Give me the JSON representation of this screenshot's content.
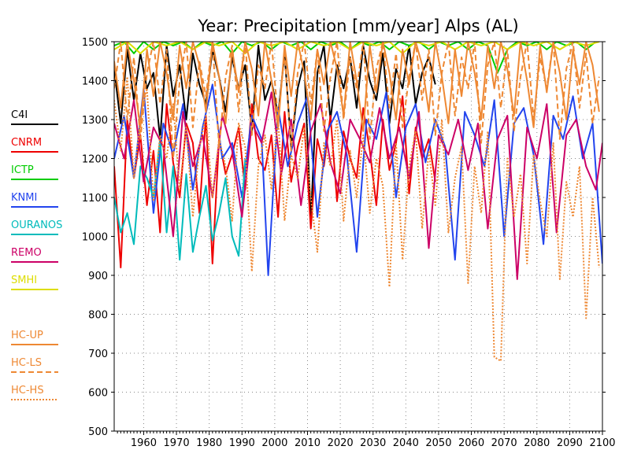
{
  "chart_data": {
    "type": "line",
    "title": "Year: Precipitation [mm/year] Alps (AL)",
    "xlabel": "",
    "ylabel": "",
    "xlim": [
      1951,
      2100
    ],
    "ylim": [
      500,
      1500
    ],
    "x_ticks": [
      1960,
      1970,
      1980,
      1990,
      2000,
      2010,
      2020,
      2030,
      2040,
      2050,
      2060,
      2070,
      2080,
      2090,
      2100
    ],
    "y_ticks": [
      500,
      600,
      700,
      800,
      900,
      1000,
      1100,
      1200,
      1300,
      1400,
      1500
    ],
    "grid": true,
    "legend_position": "left",
    "series": [
      {
        "name": "C4I",
        "color": "#000000",
        "dash": "solid",
        "x": [
          1951,
          1953,
          1955,
          1957,
          1959,
          1961,
          1963,
          1965,
          1967,
          1969,
          1971,
          1973,
          1975,
          1977,
          1979,
          1981,
          1983,
          1985,
          1987,
          1989,
          1991,
          1993,
          1995,
          1997,
          1999,
          2001,
          2003,
          2005,
          2007,
          2009,
          2011,
          2013,
          2015,
          2017,
          2019,
          2021,
          2023,
          2025,
          2027,
          2029,
          2031,
          2033,
          2035,
          2037,
          2039,
          2041,
          2043,
          2045,
          2047,
          2049
        ],
        "y": [
          1430,
          1290,
          1480,
          1350,
          1470,
          1380,
          1420,
          1250,
          1490,
          1360,
          1440,
          1300,
          1470,
          1390,
          1340,
          1480,
          1410,
          1320,
          1460,
          1380,
          1440,
          1270,
          1490,
          1350,
          1400,
          1310,
          1470,
          1230,
          1380,
          1450,
          1040,
          1420,
          1490,
          1300,
          1440,
          1380,
          1460,
          1330,
          1490,
          1400,
          1350,
          1470,
          1290,
          1430,
          1380,
          1490,
          1340,
          1420,
          1460,
          1390
        ]
      },
      {
        "name": "CNRM",
        "color": "#ee0000",
        "dash": "solid",
        "x": [
          1951,
          1953,
          1955,
          1957,
          1959,
          1961,
          1963,
          1965,
          1967,
          1969,
          1971,
          1973,
          1975,
          1977,
          1979,
          1981,
          1983,
          1985,
          1987,
          1989,
          1991,
          1993,
          1995,
          1997,
          1999,
          2001,
          2003,
          2005,
          2007,
          2009,
          2011,
          2013,
          2015,
          2017,
          2019,
          2021,
          2023,
          2025,
          2027,
          2029,
          2031,
          2033,
          2035,
          2037,
          2039,
          2041,
          2043,
          2045,
          2047,
          2049
        ],
        "y": [
          1180,
          920,
          1300,
          1150,
          1260,
          1080,
          1220,
          1010,
          1340,
          1190,
          1100,
          1290,
          1240,
          1060,
          1310,
          930,
          1250,
          1160,
          1210,
          1280,
          1120,
          1340,
          1200,
          1170,
          1260,
          1050,
          1320,
          1140,
          1230,
          1290,
          1020,
          1250,
          1180,
          1310,
          1090,
          1270,
          1200,
          1150,
          1330,
          1220,
          1080,
          1300,
          1170,
          1240,
          1360,
          1110,
          1280,
          1200,
          1250,
          1140
        ]
      },
      {
        "name": "ICTP",
        "color": "#00cc00",
        "dash": "solid",
        "x": [
          1951,
          1954,
          1957,
          1960,
          1963,
          1966,
          1969,
          1972,
          1975,
          1978,
          1981,
          1984,
          1987,
          1990,
          1993,
          1996,
          1999,
          2002,
          2005,
          2008,
          2011,
          2014,
          2017,
          2020,
          2023,
          2026,
          2029,
          2032,
          2035,
          2038,
          2041,
          2044,
          2047,
          2050,
          2053,
          2056,
          2059,
          2062,
          2065,
          2068,
          2071,
          2074,
          2077,
          2080,
          2083,
          2086,
          2089,
          2092,
          2095,
          2098
        ],
        "y": [
          1490,
          1500,
          1470,
          1500,
          1480,
          1500,
          1490,
          1500,
          1480,
          1500,
          1490,
          1500,
          1470,
          1500,
          1490,
          1500,
          1480,
          1500,
          1490,
          1500,
          1480,
          1500,
          1490,
          1500,
          1480,
          1500,
          1490,
          1500,
          1480,
          1500,
          1490,
          1500,
          1480,
          1500,
          1490,
          1500,
          1480,
          1500,
          1490,
          1420,
          1480,
          1500,
          1490,
          1500,
          1480,
          1500,
          1490,
          1500,
          1480,
          1500
        ]
      },
      {
        "name": "KNMI",
        "color": "#2244ee",
        "dash": "solid",
        "x": [
          1951,
          1954,
          1957,
          1960,
          1963,
          1966,
          1969,
          1972,
          1975,
          1978,
          1981,
          1984,
          1987,
          1990,
          1993,
          1996,
          1998,
          2001,
          2004,
          2007,
          2010,
          2013,
          2016,
          2019,
          2022,
          2025,
          2028,
          2031,
          2034,
          2037,
          2040,
          2043,
          2046,
          2049,
          2052,
          2055,
          2058,
          2061,
          2064,
          2067,
          2070,
          2073,
          2076,
          2079,
          2082,
          2085,
          2088,
          2091,
          2094,
          2097,
          2100
        ],
        "y": [
          1200,
          1310,
          1150,
          1380,
          1060,
          1290,
          1210,
          1340,
          1120,
          1280,
          1390,
          1200,
          1240,
          1100,
          1310,
          1250,
          900,
          1330,
          1180,
          1290,
          1360,
          1050,
          1270,
          1320,
          1210,
          960,
          1300,
          1250,
          1370,
          1100,
          1280,
          1340,
          1190,
          1300,
          1230,
          940,
          1320,
          1260,
          1180,
          1350,
          1000,
          1290,
          1330,
          1210,
          980,
          1310,
          1250,
          1360,
          1200,
          1290,
          930
        ]
      },
      {
        "name": "OURANOS",
        "color": "#00bbbb",
        "dash": "solid",
        "x": [
          1951,
          1953,
          1955,
          1957,
          1959,
          1961,
          1963,
          1965,
          1967,
          1969,
          1971,
          1973,
          1975,
          1977,
          1979,
          1981,
          1983,
          1985,
          1987,
          1989,
          1991
        ],
        "y": [
          1100,
          1010,
          1060,
          980,
          1180,
          1150,
          1100,
          1250,
          1010,
          1180,
          940,
          1160,
          960,
          1050,
          1130,
          990,
          1060,
          1150,
          1000,
          950,
          1200
        ]
      },
      {
        "name": "REMO",
        "color": "#cc0066",
        "dash": "solid",
        "x": [
          1951,
          1954,
          1957,
          1960,
          1963,
          1966,
          1969,
          1972,
          1975,
          1978,
          1981,
          1984,
          1987,
          1990,
          1993,
          1996,
          1999,
          2002,
          2005,
          2008,
          2011,
          2014,
          2017,
          2020,
          2023,
          2026,
          2029,
          2032,
          2035,
          2038,
          2041,
          2044,
          2047,
          2050,
          2053,
          2056,
          2059,
          2062,
          2065,
          2068,
          2071,
          2074,
          2077,
          2080,
          2083,
          2086,
          2089,
          2092,
          2095,
          2098,
          2100
        ],
        "y": [
          1290,
          1200,
          1350,
          1140,
          1280,
          1230,
          1000,
          1320,
          1180,
          1260,
          1100,
          1310,
          1220,
          1050,
          1290,
          1240,
          1370,
          1160,
          1300,
          1080,
          1270,
          1340,
          1190,
          1110,
          1300,
          1250,
          1190,
          1330,
          1200,
          1280,
          1150,
          1320,
          970,
          1260,
          1210,
          1300,
          1170,
          1290,
          1020,
          1250,
          1310,
          890,
          1280,
          1200,
          1340,
          1010,
          1260,
          1300,
          1180,
          1120,
          1240
        ]
      },
      {
        "name": "SMHI",
        "color": "#dddd00",
        "dash": "solid",
        "x": [
          1951,
          1955,
          1959,
          1963,
          1967,
          1971,
          1975,
          1979,
          1983,
          1987,
          1991,
          1995,
          1999,
          2003,
          2007,
          2011,
          2015,
          2019,
          2023,
          2027,
          2031,
          2035,
          2039,
          2043,
          2047,
          2051,
          2055,
          2059,
          2063,
          2067,
          2071,
          2075,
          2079,
          2083,
          2087,
          2091,
          2095,
          2099
        ],
        "y": [
          1480,
          1500,
          1470,
          1500,
          1490,
          1500,
          1480,
          1500,
          1490,
          1500,
          1470,
          1500,
          1490,
          1500,
          1480,
          1500,
          1490,
          1500,
          1480,
          1500,
          1490,
          1500,
          1470,
          1500,
          1490,
          1500,
          1480,
          1500,
          1490,
          1500,
          1480,
          1500,
          1490,
          1500,
          1480,
          1500,
          1490,
          1500
        ]
      },
      {
        "name": "HC-UP",
        "color": "#ee8833",
        "dash": "solid",
        "x": [
          1951,
          1953,
          1955,
          1957,
          1959,
          1961,
          1963,
          1965,
          1967,
          1969,
          1971,
          1973,
          1975,
          1977,
          1979,
          1981,
          1983,
          1985,
          1987,
          1989,
          1991,
          1993,
          1995,
          1997,
          1999,
          2001,
          2003,
          2005,
          2007,
          2009,
          2011,
          2013,
          2015,
          2017,
          2019,
          2021,
          2023,
          2025,
          2027,
          2029,
          2031,
          2033,
          2035,
          2037,
          2039,
          2041,
          2043,
          2045,
          2047,
          2049,
          2051,
          2053,
          2055,
          2057,
          2059,
          2061,
          2063,
          2065,
          2067,
          2069,
          2071,
          2073,
          2075,
          2077,
          2079,
          2081,
          2083,
          2085,
          2087,
          2089,
          2091,
          2093,
          2095,
          2097,
          2099
        ],
        "y": [
          1450,
          1330,
          1500,
          1400,
          1280,
          1480,
          1360,
          1500,
          1420,
          1300,
          1490,
          1380,
          1500,
          1440,
          1320,
          1500,
          1410,
          1290,
          1480,
          1370,
          1500,
          1430,
          1310,
          1500,
          1400,
          1280,
          1490,
          1360,
          1500,
          1420,
          1300,
          1480,
          1390,
          1500,
          1430,
          1310,
          1500,
          1400,
          1270,
          1490,
          1370,
          1500,
          1420,
          1300,
          1480,
          1390,
          1500,
          1440,
          1320,
          1500,
          1410,
          1290,
          1480,
          1360,
          1500,
          1420,
          1300,
          1490,
          1380,
          1500,
          1430,
          1310,
          1500,
          1400,
          1280,
          1490,
          1370,
          1500,
          1420,
          1300,
          1480,
          1390,
          1500,
          1440,
          1320
        ]
      },
      {
        "name": "HC-LS",
        "color": "#ee8833",
        "dash": "dashed",
        "x": [
          1951,
          1953,
          1955,
          1957,
          1959,
          1961,
          1963,
          1965,
          1967,
          1969,
          1971,
          1973,
          1975,
          1977,
          1979,
          1981,
          1983,
          1985,
          1987,
          1989,
          1991,
          1993,
          1995,
          1997,
          1999,
          2001,
          2003,
          2005,
          2007,
          2009,
          2011,
          2013,
          2015,
          2017,
          2019,
          2021,
          2023,
          2025,
          2027,
          2029,
          2031,
          2033,
          2035,
          2037,
          2039,
          2041,
          2043,
          2045,
          2047,
          2049,
          2051,
          2053,
          2055,
          2057,
          2059,
          2061,
          2063,
          2065,
          2067,
          2069,
          2071,
          2073,
          2075,
          2077,
          2079,
          2081,
          2083,
          2085,
          2087,
          2089,
          2091,
          2093,
          2095,
          2097,
          2099
        ],
        "y": [
          1380,
          1500,
          1300,
          1460,
          1250,
          1420,
          1500,
          1340,
          1480,
          1200,
          1400,
          1500,
          1280,
          1450,
          1360,
          1500,
          1230,
          1410,
          1490,
          1320,
          1500,
          1260,
          1440,
          1380,
          1500,
          1300,
          1470,
          1220,
          1420,
          1500,
          1340,
          1480,
          1270,
          1410,
          1500,
          1300,
          1460,
          1380,
          1500,
          1250,
          1430,
          1500,
          1330,
          1470,
          1280,
          1410,
          1500,
          1350,
          1480,
          1260,
          1420,
          1500,
          1310,
          1460,
          1380,
          1500,
          1240,
          1440,
          1500,
          1330,
          1480,
          1270,
          1410,
          1500,
          1300,
          1460,
          1380,
          1500,
          1250,
          1430,
          1500,
          1330,
          1470,
          1290,
          1410
        ]
      },
      {
        "name": "HC-HS",
        "color": "#ee8833",
        "dash": "dotted",
        "x": [
          1951,
          1953,
          1955,
          1957,
          1959,
          1961,
          1963,
          1965,
          1967,
          1969,
          1971,
          1973,
          1975,
          1977,
          1979,
          1981,
          1983,
          1985,
          1987,
          1989,
          1991,
          1993,
          1995,
          1997,
          1999,
          2001,
          2003,
          2005,
          2007,
          2009,
          2011,
          2013,
          2015,
          2017,
          2019,
          2021,
          2023,
          2025,
          2027,
          2029,
          2031,
          2033,
          2035,
          2037,
          2039,
          2041,
          2043,
          2045,
          2047,
          2049,
          2051,
          2053,
          2055,
          2057,
          2059,
          2061,
          2063,
          2065,
          2067,
          2069,
          2071,
          2073,
          2075,
          2077,
          2079,
          2081,
          2083,
          2085,
          2087,
          2089,
          2091,
          2093,
          2095,
          2097,
          2099
        ],
        "y": [
          1350,
          1220,
          1410,
          1150,
          1300,
          1380,
          1090,
          1260,
          1200,
          1340,
          1120,
          1280,
          1050,
          1230,
          1310,
          1100,
          1250,
          1180,
          1040,
          1290,
          1230,
          910,
          1180,
          1260,
          1120,
          1300,
          1040,
          1210,
          1150,
          1280,
          1100,
          960,
          1240,
          1180,
          1300,
          1040,
          1220,
          1100,
          1260,
          1060,
          1200,
          1130,
          870,
          1240,
          940,
          1180,
          1270,
          1020,
          1220,
          1080,
          1300,
          1010,
          1150,
          1230,
          880,
          1180,
          1060,
          1270,
          690,
          680,
          1200,
          1050,
          1160,
          930,
          1210,
          1090,
          1000,
          1240,
          890,
          1140,
          1050,
          1180,
          790,
          1100,
          920
        ]
      }
    ],
    "legend": [
      "C4I",
      "CNRM",
      "ICTP",
      "KNMI",
      "OURANOS",
      "REMO",
      "SMHI",
      "HC-UP",
      "HC-LS",
      "HC-HS"
    ]
  }
}
